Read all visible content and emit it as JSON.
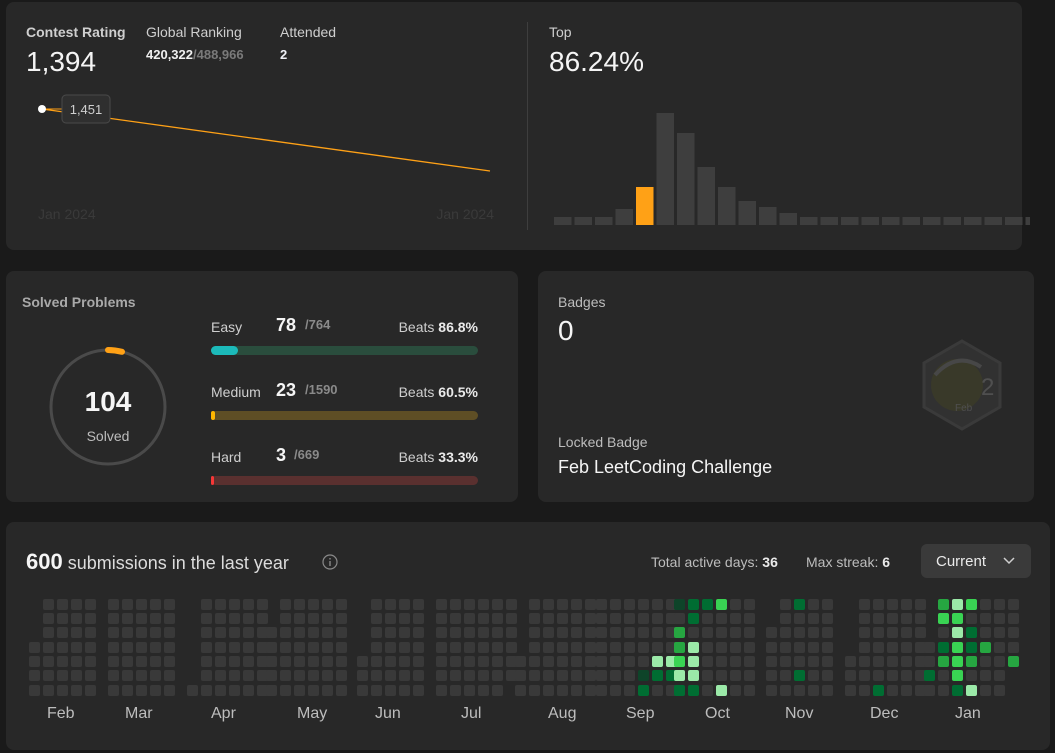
{
  "contest": {
    "rating_label": "Contest Rating",
    "rating_value": "1,394",
    "ranking_label": "Global Ranking",
    "ranking_value": "420,322",
    "ranking_total": "/488,966",
    "attended_label": "Attended",
    "attended_value": "2",
    "tooltip_value": "1,451",
    "x_start": "Jan 2024",
    "x_end": "Jan 2024",
    "line_color": "#ffa116"
  },
  "top": {
    "label": "Top",
    "value": "86.24%",
    "highlight_color": "#ffa116"
  },
  "chart_data": {
    "type": "bar",
    "values": [
      4,
      4,
      4,
      8,
      19,
      56,
      46,
      29,
      19,
      12,
      9,
      6,
      4,
      4,
      4,
      4,
      4,
      4,
      4,
      4,
      4,
      4,
      4,
      4
    ],
    "highlight_index": 4,
    "ylim": [
      0,
      60
    ]
  },
  "solved": {
    "title": "Solved Problems",
    "total": "104",
    "total_label": "Solved",
    "easy": {
      "label": "Easy",
      "count": "78",
      "total": "/764",
      "beats_label": "Beats",
      "beats": "86.8%",
      "fraction": 0.102,
      "color": "#1cbaba",
      "track": "#2a4d3d"
    },
    "medium": {
      "label": "Medium",
      "count": "23",
      "total": "/1590",
      "beats_label": "Beats",
      "beats": "60.5%",
      "fraction": 0.014,
      "color": "#ffb700",
      "track": "#5e4e25"
    },
    "hard": {
      "label": "Hard",
      "count": "3",
      "total": "/669",
      "beats_label": "Beats",
      "beats": "33.3%",
      "fraction": 0.004,
      "color": "#f63737",
      "track": "#5a302f"
    }
  },
  "badges": {
    "label": "Badges",
    "count": "0",
    "locked_label": "Locked Badge",
    "locked_name": "Feb LeetCoding Challenge",
    "badge_icon_text_num": "2",
    "badge_icon_text_month": "Feb"
  },
  "submissions": {
    "count": "600",
    "text": "submissions in the last year",
    "active_days_label": "Total active days:",
    "active_days": "36",
    "max_streak_label": "Max streak:",
    "max_streak": "6",
    "dropdown_value": "Current",
    "months": [
      "Feb",
      "Mar",
      "Apr",
      "May",
      "Jun",
      "Jul",
      "Aug",
      "Sep",
      "Oct",
      "Nov",
      "Dec",
      "Jan"
    ],
    "colors": {
      "empty": "#393939",
      "l1": "#0e4429",
      "l2": "#006d32",
      "l3": "#26a641",
      "l4": "#39d353",
      "l5": "#9be9a8"
    }
  }
}
